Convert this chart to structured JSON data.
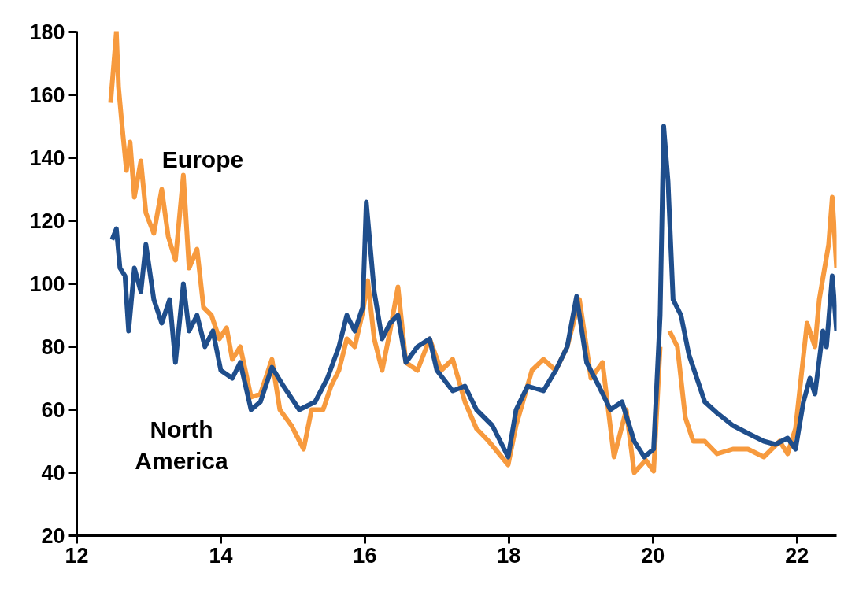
{
  "chart_data": {
    "type": "line",
    "xlim": [
      12,
      22.55
    ],
    "ylim": [
      20,
      180
    ],
    "xticks": [
      12,
      14,
      16,
      18,
      20,
      22
    ],
    "yticks": [
      20,
      40,
      60,
      80,
      100,
      120,
      140,
      160,
      180
    ],
    "grid": false,
    "legend": false,
    "series": [
      {
        "name": "Europe",
        "color": "#f79a3e",
        "x": [
          12.47,
          12.55,
          12.58,
          12.63,
          12.69,
          12.74,
          12.8,
          12.89,
          12.96,
          13.07,
          13.18,
          13.27,
          13.37,
          13.48,
          13.56,
          13.67,
          13.76,
          13.87,
          13.98,
          14.08,
          14.16,
          14.27,
          14.42,
          14.55,
          14.71,
          14.82,
          14.98,
          15.15,
          15.26,
          15.42,
          15.53,
          15.64,
          15.75,
          15.86,
          15.97,
          16.04,
          16.13,
          16.24,
          16.35,
          16.46,
          16.57,
          16.73,
          16.9,
          17.06,
          17.22,
          17.39,
          17.55,
          17.72,
          17.99,
          18.1,
          18.32,
          18.48,
          18.65,
          18.81,
          18.98,
          19.14,
          19.3,
          19.46,
          19.63,
          19.74,
          19.9,
          20.01,
          20.1,
          20.15,
          20.23,
          20.34,
          20.45,
          20.56,
          20.72,
          20.89,
          21.11,
          21.32,
          21.54,
          21.76,
          21.87,
          21.98,
          22.14,
          22.25,
          22.31,
          22.44,
          22.49,
          22.55
        ],
        "values": [
          157.5,
          180,
          162.5,
          150,
          136,
          145,
          127.5,
          139,
          122.5,
          116,
          130,
          115,
          107.5,
          134.5,
          105,
          111,
          92.5,
          90,
          82.5,
          86,
          76,
          80,
          64,
          65,
          76,
          60,
          55,
          47.5,
          60,
          60,
          67.5,
          72.5,
          82.5,
          80,
          91,
          101,
          82.5,
          72.5,
          85,
          99,
          75,
          72.5,
          82.5,
          72.5,
          76,
          62.5,
          54,
          50,
          42.5,
          55,
          72.5,
          76,
          72.5,
          80,
          95,
          70,
          75,
          45,
          60,
          40,
          44,
          40.5,
          80,
          null,
          85,
          80,
          57.5,
          50,
          50,
          46,
          47.5,
          47.5,
          45,
          50,
          46,
          54,
          87.5,
          80,
          95,
          112.5,
          127.5,
          105
        ]
      },
      {
        "name": "North America",
        "color": "#1f4e8c",
        "x": [
          12.49,
          12.55,
          12.6,
          12.67,
          12.72,
          12.8,
          12.89,
          12.96,
          13.07,
          13.18,
          13.29,
          13.37,
          13.48,
          13.56,
          13.67,
          13.78,
          13.89,
          14.0,
          14.16,
          14.27,
          14.42,
          14.55,
          14.71,
          14.87,
          15.09,
          15.31,
          15.48,
          15.64,
          15.75,
          15.86,
          15.97,
          16.02,
          16.13,
          16.24,
          16.35,
          16.46,
          16.57,
          16.73,
          16.9,
          17.0,
          17.22,
          17.39,
          17.55,
          17.77,
          17.99,
          18.1,
          18.26,
          18.48,
          18.65,
          18.81,
          18.94,
          19.08,
          19.25,
          19.41,
          19.57,
          19.74,
          19.88,
          20.01,
          20.1,
          20.15,
          20.21,
          20.28,
          20.39,
          20.5,
          20.61,
          20.72,
          20.89,
          21.11,
          21.32,
          21.54,
          21.7,
          21.87,
          21.98,
          22.09,
          22.18,
          22.25,
          22.36,
          22.41,
          22.49,
          22.55
        ],
        "values": [
          114,
          117.5,
          105,
          102.5,
          85,
          105,
          97.5,
          112.5,
          95,
          87.5,
          95,
          75,
          100,
          85,
          90,
          80,
          85,
          72.5,
          70,
          75,
          60,
          62.5,
          73.5,
          67.5,
          60,
          62.5,
          70,
          80,
          90,
          85,
          92.5,
          126,
          97.5,
          82.5,
          87.5,
          90,
          75,
          80,
          82.5,
          72.5,
          66,
          67.5,
          60,
          55,
          45,
          60,
          67.5,
          66,
          72.5,
          80,
          96,
          75,
          67.5,
          60,
          62.5,
          50,
          45,
          47.5,
          90,
          150,
          132.5,
          95,
          90,
          77.5,
          70,
          62.5,
          59,
          55,
          52.5,
          50,
          49,
          51,
          47.5,
          62.5,
          70,
          65,
          85,
          80,
          102.5,
          85
        ]
      }
    ]
  }
}
